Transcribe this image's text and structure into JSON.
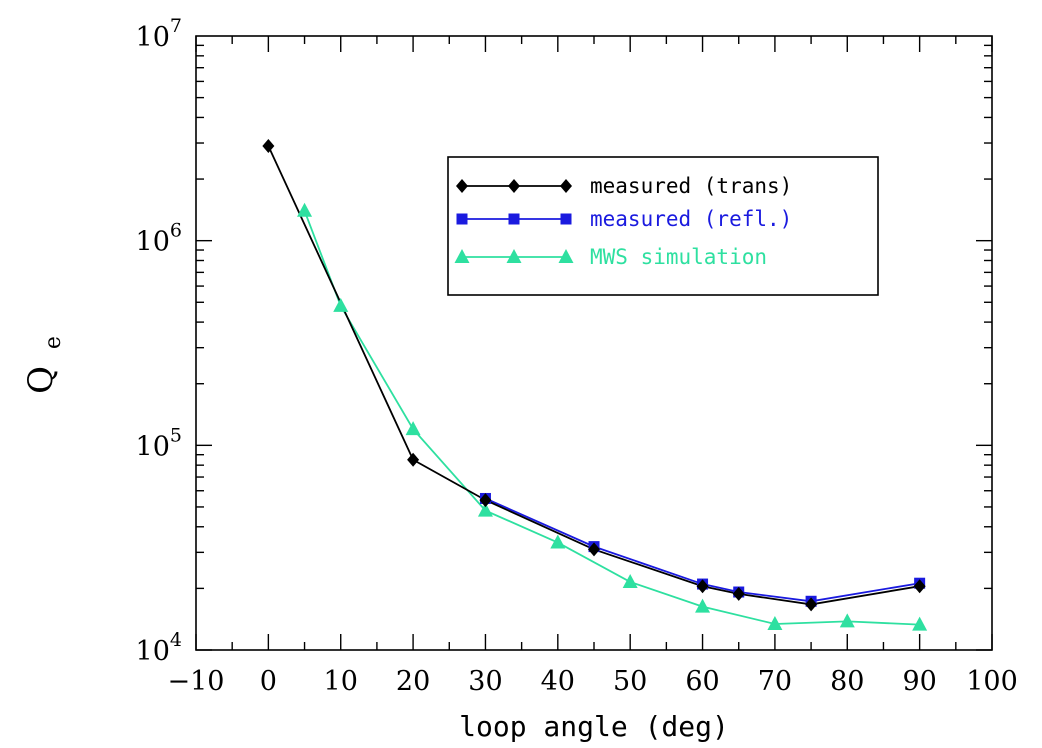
{
  "chart_data": {
    "type": "line",
    "title": "",
    "xlabel": "loop angle (deg)",
    "ylabel_main": "Q",
    "ylabel_sub": "e",
    "xlim": [
      -10,
      100
    ],
    "ylim": [
      10000,
      10000000
    ],
    "yscale": "log",
    "grid": false,
    "legend_position": "top-right",
    "x_ticks": [
      -10,
      0,
      10,
      20,
      30,
      40,
      50,
      60,
      70,
      80,
      90,
      100
    ],
    "x_tick_labels": [
      "−10",
      "0",
      "10",
      "20",
      "30",
      "40",
      "50",
      "60",
      "70",
      "80",
      "90",
      "100"
    ],
    "y_ticks": [
      {
        "value": 10000,
        "base": "10",
        "exp": "4"
      },
      {
        "value": 100000,
        "base": "10",
        "exp": "5"
      },
      {
        "value": 1000000,
        "base": "10",
        "exp": "6"
      },
      {
        "value": 10000000,
        "base": "10",
        "exp": "7"
      }
    ],
    "series": [
      {
        "name": "measured (trans)",
        "color": "#000000",
        "marker": "diamond",
        "x": [
          0,
          20,
          30,
          45,
          60,
          65,
          75,
          90
        ],
        "y": [
          2900000,
          85000,
          54000,
          31000,
          20500,
          18800,
          16700,
          20500
        ]
      },
      {
        "name": "measured (refl.)",
        "color": "#1a1adf",
        "marker": "square",
        "x": [
          30,
          45,
          60,
          65,
          75,
          90
        ],
        "y": [
          55000,
          32000,
          21000,
          19200,
          17300,
          21200
        ]
      },
      {
        "name": "MWS simulation",
        "color": "#2ee0a0",
        "marker": "triangle",
        "x": [
          5,
          10,
          20,
          30,
          40,
          50,
          60,
          70,
          80,
          90
        ],
        "y": [
          1400000,
          480000,
          120000,
          48000,
          33500,
          21500,
          16300,
          13400,
          13800,
          13300
        ]
      }
    ]
  }
}
